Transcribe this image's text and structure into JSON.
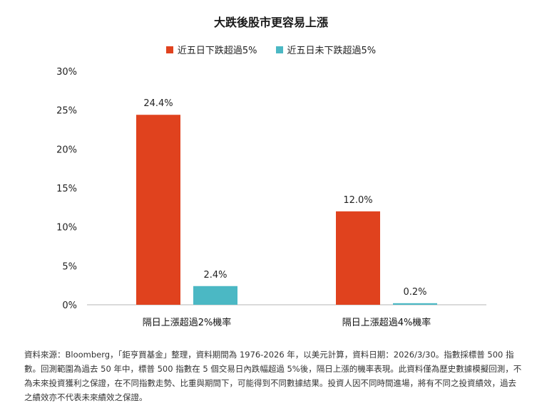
{
  "colors": {
    "series1": "#e0421e",
    "series2": "#4bb8c4",
    "axis": "#b5b5b5"
  },
  "chart_data": {
    "type": "bar",
    "title": "大跌後股市更容易上漲",
    "categories": [
      "隔日上漲超過2%機率",
      "隔日上漲超過4%機率"
    ],
    "series": [
      {
        "name": "近五日下跌超過5%",
        "values": [
          24.4,
          12.0
        ],
        "labels": [
          "24.4%",
          "12.0%"
        ]
      },
      {
        "name": "近五日未下跌超過5%",
        "values": [
          2.4,
          0.2
        ],
        "labels": [
          "2.4%",
          "0.2%"
        ]
      }
    ],
    "ylim": [
      0,
      30
    ],
    "yticks": [
      0,
      5,
      10,
      15,
      20,
      25,
      30
    ],
    "ytick_labels": [
      "0%",
      "5%",
      "10%",
      "15%",
      "20%",
      "25%",
      "30%"
    ],
    "legend_position": "top-center",
    "grid": false
  },
  "footnote": "資料來源：Bloomberg，「鉅亨買基金」整理，資料期間為 1976-2026 年，以美元計算，資料日期：2026/3/30。指數採標普 500 指數。回測範圍為過去 50 年中，標普 500 指數在 5 個交易日內跌幅超過 5%後，隔日上漲的機率表現。此資料僅為歷史數據模擬回測，不為未來投資獲利之保證，在不同指數走勢、比重與期間下，可能得到不同數據結果。投資人因不同時間進場，將有不同之投資績效，過去之績效亦不代表未來績效之保證。"
}
